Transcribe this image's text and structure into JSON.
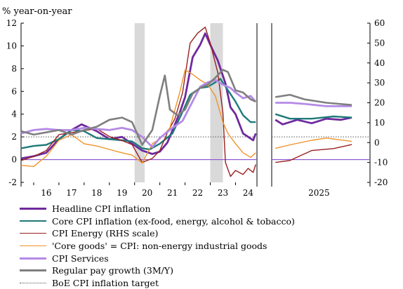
{
  "chart_data": {
    "type": "line",
    "ylabel": "% year-on-year",
    "left_axis": {
      "ylim": [
        -2,
        12
      ],
      "ticks": [
        -2,
        0,
        2,
        4,
        6,
        8,
        10,
        12
      ]
    },
    "right_axis": {
      "ylim": [
        -20,
        60
      ],
      "ticks": [
        -20,
        -10,
        0,
        10,
        20,
        30,
        40,
        50,
        60
      ]
    },
    "x_ticks": [
      "16",
      "17",
      "18",
      "19",
      "20",
      "21",
      "22",
      "23",
      "24"
    ],
    "forecast_tick": "2025",
    "recession_shading": [
      [
        2020.0,
        2020.4
      ],
      [
        2023.0,
        2023.5
      ]
    ],
    "target": 2,
    "series": [
      {
        "name": "Headline CPI inflation",
        "color": "#6e2a9e",
        "axis": "left",
        "history": [
          [
            2015.5,
            0.1
          ],
          [
            2016.0,
            0.3
          ],
          [
            2016.5,
            0.6
          ],
          [
            2017.0,
            1.8
          ],
          [
            2017.5,
            2.6
          ],
          [
            2017.9,
            3.1
          ],
          [
            2018.5,
            2.5
          ],
          [
            2019.0,
            1.8
          ],
          [
            2019.5,
            2.0
          ],
          [
            2019.9,
            1.4
          ],
          [
            2020.3,
            0.8
          ],
          [
            2020.7,
            0.5
          ],
          [
            2021.0,
            0.7
          ],
          [
            2021.3,
            1.5
          ],
          [
            2021.6,
            3.1
          ],
          [
            2021.8,
            4.2
          ],
          [
            2022.0,
            5.5
          ],
          [
            2022.3,
            9.0
          ],
          [
            2022.6,
            10.1
          ],
          [
            2022.8,
            11.1
          ],
          [
            2023.0,
            10.1
          ],
          [
            2023.3,
            8.7
          ],
          [
            2023.6,
            6.7
          ],
          [
            2023.8,
            4.6
          ],
          [
            2024.0,
            4.0
          ],
          [
            2024.3,
            2.3
          ],
          [
            2024.5,
            2.0
          ],
          [
            2024.7,
            1.7
          ],
          [
            2024.8,
            2.3
          ]
        ],
        "forecast": [
          [
            2024.85,
            3.5
          ],
          [
            2025.0,
            3.1
          ],
          [
            2025.2,
            3.5
          ],
          [
            2025.4,
            3.2
          ],
          [
            2025.6,
            3.6
          ],
          [
            2025.8,
            3.5
          ],
          [
            2025.95,
            3.7
          ]
        ]
      },
      {
        "name": "Core CPI inflation (ex-food, energy, alcohol & tobacco)",
        "color": "#1f7a7a",
        "axis": "left",
        "history": [
          [
            2015.5,
            1.0
          ],
          [
            2016.0,
            1.2
          ],
          [
            2016.5,
            1.3
          ],
          [
            2017.0,
            1.8
          ],
          [
            2017.5,
            2.6
          ],
          [
            2018.0,
            2.5
          ],
          [
            2018.5,
            1.9
          ],
          [
            2019.0,
            1.8
          ],
          [
            2019.5,
            1.7
          ],
          [
            2019.9,
            1.6
          ],
          [
            2020.3,
            1.0
          ],
          [
            2020.6,
            0.9
          ],
          [
            2021.0,
            1.4
          ],
          [
            2021.5,
            2.3
          ],
          [
            2021.9,
            4.2
          ],
          [
            2022.2,
            5.7
          ],
          [
            2022.6,
            6.3
          ],
          [
            2022.9,
            6.4
          ],
          [
            2023.2,
            6.8
          ],
          [
            2023.4,
            7.1
          ],
          [
            2023.7,
            6.1
          ],
          [
            2024.0,
            5.1
          ],
          [
            2024.3,
            3.9
          ],
          [
            2024.6,
            3.3
          ],
          [
            2024.8,
            3.3
          ]
        ],
        "forecast": [
          [
            2024.85,
            4.0
          ],
          [
            2025.1,
            3.6
          ],
          [
            2025.4,
            3.6
          ],
          [
            2025.7,
            3.8
          ],
          [
            2025.95,
            3.7
          ]
        ]
      },
      {
        "name": "CPI Energy (RHS scale)",
        "color": "#9a2020",
        "axis": "right",
        "history": [
          [
            2015.5,
            -9
          ],
          [
            2016.0,
            -7
          ],
          [
            2016.5,
            -4
          ],
          [
            2017.0,
            4
          ],
          [
            2017.5,
            5
          ],
          [
            2018.0,
            6
          ],
          [
            2018.5,
            7
          ],
          [
            2019.0,
            3
          ],
          [
            2019.5,
            1
          ],
          [
            2019.9,
            -1
          ],
          [
            2020.3,
            -10
          ],
          [
            2020.7,
            -8
          ],
          [
            2021.0,
            -4
          ],
          [
            2021.3,
            5
          ],
          [
            2021.6,
            12
          ],
          [
            2021.9,
            25
          ],
          [
            2022.2,
            50
          ],
          [
            2022.5,
            55
          ],
          [
            2022.8,
            58
          ],
          [
            2023.0,
            50
          ],
          [
            2023.3,
            35
          ],
          [
            2023.5,
            15
          ],
          [
            2023.6,
            -10
          ],
          [
            2023.8,
            -17
          ],
          [
            2024.0,
            -14
          ],
          [
            2024.3,
            -16
          ],
          [
            2024.5,
            -13
          ],
          [
            2024.7,
            -15
          ],
          [
            2024.8,
            -11
          ]
        ],
        "forecast": [
          [
            2024.85,
            -10
          ],
          [
            2025.1,
            -9
          ],
          [
            2025.4,
            -4
          ],
          [
            2025.7,
            -3
          ],
          [
            2025.95,
            -1
          ]
        ]
      },
      {
        "name": "'Core goods' = CPI: non-energy industrial goods",
        "color": "#f0932a",
        "axis": "left",
        "history": [
          [
            2015.5,
            -0.5
          ],
          [
            2016.0,
            -0.6
          ],
          [
            2016.5,
            0.3
          ],
          [
            2017.0,
            1.7
          ],
          [
            2017.5,
            2.2
          ],
          [
            2018.0,
            1.4
          ],
          [
            2018.5,
            1.2
          ],
          [
            2019.0,
            0.9
          ],
          [
            2019.5,
            0.6
          ],
          [
            2019.9,
            0.4
          ],
          [
            2020.3,
            -0.3
          ],
          [
            2020.7,
            1.4
          ],
          [
            2021.0,
            1.8
          ],
          [
            2021.4,
            2.8
          ],
          [
            2021.8,
            6.0
          ],
          [
            2022.0,
            7.9
          ],
          [
            2022.3,
            7.5
          ],
          [
            2022.6,
            7.0
          ],
          [
            2022.9,
            6.6
          ],
          [
            2023.2,
            5.6
          ],
          [
            2023.5,
            3.3
          ],
          [
            2023.7,
            2.3
          ],
          [
            2024.0,
            1.4
          ],
          [
            2024.3,
            0.6
          ],
          [
            2024.6,
            0.2
          ],
          [
            2024.8,
            0.6
          ]
        ],
        "forecast": [
          [
            2024.85,
            1.0
          ],
          [
            2025.1,
            1.3
          ],
          [
            2025.4,
            1.7
          ],
          [
            2025.6,
            1.9
          ],
          [
            2025.95,
            1.6
          ]
        ]
      },
      {
        "name": "CPI Services",
        "color": "#b48ae6",
        "axis": "left",
        "history": [
          [
            2015.5,
            2.3
          ],
          [
            2016.0,
            2.6
          ],
          [
            2016.5,
            2.7
          ],
          [
            2017.0,
            2.6
          ],
          [
            2017.5,
            2.6
          ],
          [
            2018.0,
            2.8
          ],
          [
            2018.5,
            2.7
          ],
          [
            2019.0,
            2.6
          ],
          [
            2019.5,
            2.8
          ],
          [
            2019.9,
            2.6
          ],
          [
            2020.3,
            2.0
          ],
          [
            2020.7,
            1.1
          ],
          [
            2021.0,
            1.9
          ],
          [
            2021.5,
            2.8
          ],
          [
            2021.9,
            3.4
          ],
          [
            2022.2,
            4.7
          ],
          [
            2022.6,
            6.4
          ],
          [
            2022.9,
            6.8
          ],
          [
            2023.2,
            7.0
          ],
          [
            2023.5,
            6.6
          ],
          [
            2023.8,
            6.3
          ],
          [
            2024.0,
            5.9
          ],
          [
            2024.3,
            5.4
          ],
          [
            2024.6,
            5.6
          ],
          [
            2024.8,
            5.1
          ]
        ],
        "forecast": [
          [
            2024.85,
            5.0
          ],
          [
            2025.1,
            5.0
          ],
          [
            2025.3,
            4.9
          ],
          [
            2025.6,
            4.7
          ],
          [
            2025.95,
            4.7
          ]
        ]
      },
      {
        "name": "Regular pay growth (3M/Y)",
        "color": "#7f7f7f",
        "axis": "left",
        "history": [
          [
            2015.5,
            2.5
          ],
          [
            2016.0,
            2.2
          ],
          [
            2016.5,
            2.4
          ],
          [
            2017.0,
            2.6
          ],
          [
            2017.5,
            2.2
          ],
          [
            2018.0,
            2.6
          ],
          [
            2018.5,
            2.9
          ],
          [
            2019.0,
            3.5
          ],
          [
            2019.5,
            3.7
          ],
          [
            2019.9,
            3.3
          ],
          [
            2020.3,
            1.3
          ],
          [
            2020.7,
            2.6
          ],
          [
            2021.0,
            5.6
          ],
          [
            2021.2,
            7.4
          ],
          [
            2021.4,
            4.4
          ],
          [
            2021.7,
            3.9
          ],
          [
            2022.0,
            4.4
          ],
          [
            2022.3,
            5.8
          ],
          [
            2022.6,
            6.3
          ],
          [
            2022.9,
            6.6
          ],
          [
            2023.2,
            7.2
          ],
          [
            2023.5,
            7.9
          ],
          [
            2023.7,
            7.7
          ],
          [
            2024.0,
            6.1
          ],
          [
            2024.3,
            5.9
          ],
          [
            2024.6,
            5.3
          ],
          [
            2024.8,
            5.1
          ]
        ],
        "forecast": [
          [
            2024.85,
            5.5
          ],
          [
            2025.1,
            5.7
          ],
          [
            2025.3,
            5.3
          ],
          [
            2025.6,
            5.0
          ],
          [
            2025.95,
            4.8
          ]
        ]
      }
    ],
    "legend": [
      {
        "label": "Headline CPI inflation",
        "color": "#6e2a9e",
        "style": "solid",
        "width": 3
      },
      {
        "label": "Core CPI inflation (ex-food, energy, alcohol & tobacco)",
        "color": "#1f7a7a",
        "style": "solid",
        "width": 2.5
      },
      {
        "label": "CPI Energy (RHS scale)",
        "color": "#9a2020",
        "style": "solid",
        "width": 1.5
      },
      {
        "label": "'Core goods' = CPI: non-energy industrial goods",
        "color": "#f0932a",
        "style": "solid",
        "width": 1.5
      },
      {
        "label": "CPI Services",
        "color": "#b48ae6",
        "style": "solid",
        "width": 3
      },
      {
        "label": "Regular pay growth (3M/Y)",
        "color": "#7f7f7f",
        "style": "solid",
        "width": 3
      },
      {
        "label": "BoE CPI inflation target",
        "color": "#555555",
        "style": "dotted",
        "width": 1
      }
    ]
  }
}
